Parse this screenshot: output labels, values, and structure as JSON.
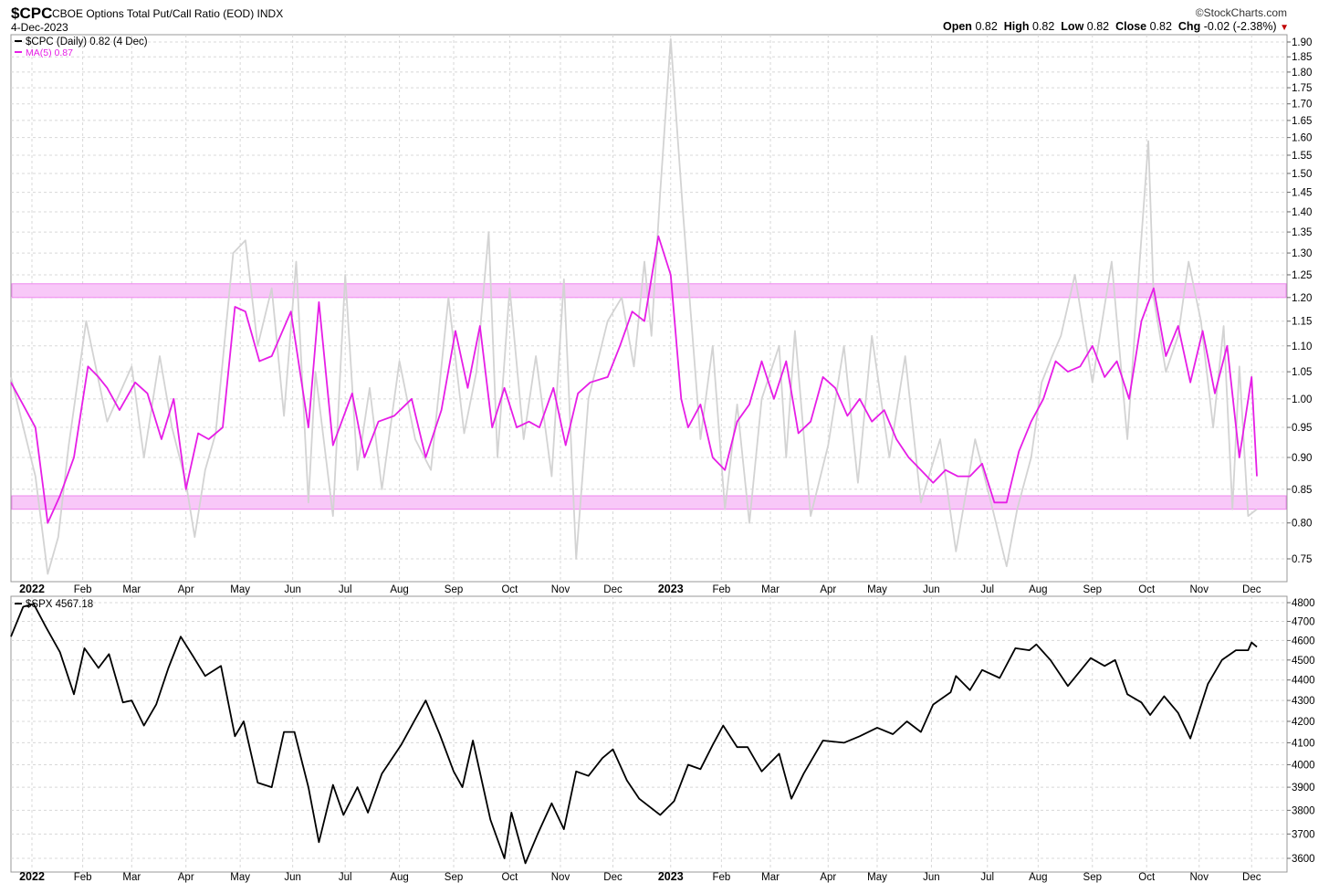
{
  "header": {
    "symbol": "$CPC",
    "name": "CBOE Options Total Put/Call Ratio (EOD)",
    "exchange": "INDX",
    "date": "4-Dec-2023",
    "brand": "©StockCharts.com",
    "open_label": "Open",
    "open": "0.82",
    "high_label": "High",
    "high": "0.82",
    "low_label": "Low",
    "low": "0.82",
    "close_label": "Close",
    "close": "0.82",
    "chg_label": "Chg",
    "chg": "-0.02 (-2.38%)",
    "chg_arrow": "▼"
  },
  "legend": {
    "cpc": "$CPC (Daily) 0.82 (4 Dec)",
    "ma": "MA(5) 0.87",
    "spx": "$SPX 4567.18"
  },
  "colors": {
    "cpc_line": "#d3d3d3",
    "ma_line": "#e61ee6",
    "band_fill": "#f8c8f8",
    "band_edge": "#ee88ee",
    "spx_line": "#000000",
    "grid": "#d8d8d8"
  },
  "chart_data": [
    {
      "type": "line",
      "x_range": [
        "2021-12-22",
        "2023-12-04"
      ],
      "y_ticks": [
        "0.75",
        "0.80",
        "0.85",
        "0.90",
        "0.95",
        "1.00",
        "1.05",
        "1.10",
        "1.15",
        "1.20",
        "1.25",
        "1.30",
        "1.35",
        "1.40",
        "1.45",
        "1.50",
        "1.55",
        "1.60",
        "1.65",
        "1.70",
        "1.75",
        "1.80",
        "1.85",
        "1.90"
      ],
      "x_ticks": [
        "2022",
        "Feb",
        "Mar",
        "Apr",
        "May",
        "Jun",
        "Jul",
        "Aug",
        "Sep",
        "Oct",
        "Nov",
        "Dec",
        "2023",
        "Feb",
        "Mar",
        "Apr",
        "May",
        "Jun",
        "Jul",
        "Aug",
        "Sep",
        "Oct",
        "Nov",
        "Dec"
      ],
      "scale": "log",
      "grid": true,
      "legend_position": "top-left",
      "bands": [
        [
          1.2,
          1.23
        ],
        [
          0.82,
          0.84
        ]
      ],
      "series": [
        {
          "name": "$CPC (Daily) 0.82 (4 Dec)",
          "x": [
            "2021-12-22",
            "2022-01-05",
            "2022-01-12",
            "2022-01-18",
            "2022-01-24",
            "2022-02-03",
            "2022-02-15",
            "2022-03-01",
            "2022-03-08",
            "2022-03-17",
            "2022-03-24",
            "2022-04-01",
            "2022-04-06",
            "2022-04-12",
            "2022-04-18",
            "2022-04-28",
            "2022-05-05",
            "2022-05-12",
            "2022-05-20",
            "2022-05-27",
            "2022-06-03",
            "2022-06-10",
            "2022-06-14",
            "2022-06-24",
            "2022-07-01",
            "2022-07-08",
            "2022-07-15",
            "2022-07-22",
            "2022-08-01",
            "2022-08-10",
            "2022-08-19",
            "2022-08-29",
            "2022-09-07",
            "2022-09-14",
            "2022-09-21",
            "2022-09-26",
            "2022-10-03",
            "2022-10-11",
            "2022-10-18",
            "2022-10-27",
            "2022-11-03",
            "2022-11-10",
            "2022-11-17",
            "2022-11-28",
            "2022-12-06",
            "2022-12-13",
            "2022-12-19",
            "2022-12-23",
            "2022-12-28",
            "2023-01-03",
            "2023-01-10",
            "2023-01-20",
            "2023-01-27",
            "2023-02-03",
            "2023-02-10",
            "2023-02-17",
            "2023-02-24",
            "2023-03-06",
            "2023-03-10",
            "2023-03-15",
            "2023-03-24",
            "2023-04-03",
            "2023-04-12",
            "2023-04-20",
            "2023-04-28",
            "2023-05-08",
            "2023-05-17",
            "2023-05-26",
            "2023-06-06",
            "2023-06-15",
            "2023-06-26",
            "2023-07-06",
            "2023-07-14",
            "2023-07-20",
            "2023-07-28",
            "2023-08-03",
            "2023-08-09",
            "2023-08-14",
            "2023-08-22",
            "2023-09-01",
            "2023-09-12",
            "2023-09-21",
            "2023-09-28",
            "2023-10-03",
            "2023-10-06",
            "2023-10-13",
            "2023-10-20",
            "2023-10-26",
            "2023-11-02",
            "2023-11-09",
            "2023-11-15",
            "2023-11-20",
            "2023-11-24",
            "2023-11-29",
            "2023-12-04"
          ],
          "values": [
            1.04,
            0.87,
            0.73,
            0.78,
            0.92,
            1.15,
            0.96,
            1.06,
            0.9,
            1.08,
            0.95,
            0.86,
            0.78,
            0.88,
            0.94,
            1.3,
            1.33,
            1.1,
            1.22,
            0.97,
            1.28,
            0.83,
            1.05,
            0.81,
            1.25,
            0.88,
            1.02,
            0.85,
            1.07,
            0.93,
            0.88,
            1.2,
            0.94,
            1.05,
            1.35,
            0.9,
            1.22,
            0.93,
            1.08,
            0.87,
            1.24,
            0.75,
            1.0,
            1.15,
            1.2,
            1.06,
            1.28,
            1.12,
            1.45,
            1.91,
            1.4,
            0.93,
            1.1,
            0.82,
            0.99,
            0.8,
            1.0,
            1.1,
            0.9,
            1.13,
            0.81,
            0.92,
            1.1,
            0.86,
            1.12,
            0.9,
            1.08,
            0.83,
            0.93,
            0.76,
            0.93,
            0.82,
            0.74,
            0.82,
            0.9,
            1.03,
            1.08,
            1.12,
            1.25,
            1.03,
            1.28,
            0.93,
            1.28,
            1.59,
            1.2,
            1.05,
            1.12,
            1.28,
            1.15,
            0.95,
            1.14,
            0.82,
            1.06,
            0.81,
            0.82
          ]
        },
        {
          "name": "MA(5) 0.87",
          "x": [
            "2021-12-22",
            "2022-01-05",
            "2022-01-12",
            "2022-01-19",
            "2022-01-27",
            "2022-02-04",
            "2022-02-10",
            "2022-02-15",
            "2022-02-22",
            "2022-03-03",
            "2022-03-10",
            "2022-03-18",
            "2022-03-25",
            "2022-04-01",
            "2022-04-08",
            "2022-04-14",
            "2022-04-22",
            "2022-04-29",
            "2022-05-05",
            "2022-05-13",
            "2022-05-20",
            "2022-05-31",
            "2022-06-10",
            "2022-06-16",
            "2022-06-24",
            "2022-07-05",
            "2022-07-12",
            "2022-07-20",
            "2022-07-29",
            "2022-08-08",
            "2022-08-16",
            "2022-08-25",
            "2022-09-02",
            "2022-09-09",
            "2022-09-16",
            "2022-09-23",
            "2022-09-30",
            "2022-10-07",
            "2022-10-14",
            "2022-10-20",
            "2022-10-28",
            "2022-11-04",
            "2022-11-11",
            "2022-11-18",
            "2022-11-28",
            "2022-12-05",
            "2022-12-12",
            "2022-12-19",
            "2022-12-27",
            "2023-01-03",
            "2023-01-09",
            "2023-01-13",
            "2023-01-20",
            "2023-01-27",
            "2023-02-03",
            "2023-02-10",
            "2023-02-17",
            "2023-02-24",
            "2023-03-03",
            "2023-03-10",
            "2023-03-17",
            "2023-03-24",
            "2023-03-31",
            "2023-04-07",
            "2023-04-14",
            "2023-04-21",
            "2023-04-28",
            "2023-05-05",
            "2023-05-12",
            "2023-05-19",
            "2023-05-26",
            "2023-06-02",
            "2023-06-09",
            "2023-06-16",
            "2023-06-23",
            "2023-06-30",
            "2023-07-07",
            "2023-07-14",
            "2023-07-21",
            "2023-07-28",
            "2023-08-04",
            "2023-08-11",
            "2023-08-18",
            "2023-08-25",
            "2023-09-01",
            "2023-09-08",
            "2023-09-15",
            "2023-09-22",
            "2023-09-29",
            "2023-10-06",
            "2023-10-13",
            "2023-10-20",
            "2023-10-27",
            "2023-11-03",
            "2023-11-10",
            "2023-11-17",
            "2023-11-24",
            "2023-12-01",
            "2023-12-04"
          ],
          "values": [
            1.03,
            0.95,
            0.8,
            0.84,
            0.9,
            1.06,
            1.04,
            1.02,
            0.98,
            1.03,
            1.01,
            0.93,
            1.0,
            0.85,
            0.94,
            0.93,
            0.95,
            1.18,
            1.17,
            1.07,
            1.08,
            1.17,
            0.95,
            1.19,
            0.92,
            1.01,
            0.9,
            0.96,
            0.97,
            1.0,
            0.9,
            0.98,
            1.13,
            1.02,
            1.14,
            0.95,
            1.02,
            0.95,
            0.96,
            0.95,
            1.02,
            0.92,
            1.01,
            1.03,
            1.04,
            1.1,
            1.17,
            1.15,
            1.34,
            1.25,
            1.0,
            0.95,
            0.99,
            0.9,
            0.88,
            0.96,
            0.99,
            1.07,
            1.0,
            1.07,
            0.94,
            0.96,
            1.04,
            1.02,
            0.97,
            1.0,
            0.96,
            0.98,
            0.93,
            0.9,
            0.88,
            0.86,
            0.88,
            0.87,
            0.87,
            0.89,
            0.83,
            0.83,
            0.91,
            0.96,
            1.0,
            1.07,
            1.05,
            1.06,
            1.1,
            1.04,
            1.07,
            1.0,
            1.15,
            1.22,
            1.08,
            1.14,
            1.03,
            1.13,
            1.01,
            1.1,
            0.9,
            1.04,
            0.87
          ]
        }
      ]
    },
    {
      "type": "line",
      "x_range": [
        "2021-12-22",
        "2023-12-04"
      ],
      "y_ticks": [
        "3600",
        "3700",
        "3800",
        "3900",
        "4000",
        "4100",
        "4200",
        "4300",
        "4400",
        "4500",
        "4600",
        "4700",
        "4800"
      ],
      "x_ticks": [
        "2022",
        "Feb",
        "Mar",
        "Apr",
        "May",
        "Jun",
        "Jul",
        "Aug",
        "Sep",
        "Oct",
        "Nov",
        "Dec",
        "2023",
        "Feb",
        "Mar",
        "Apr",
        "May",
        "Jun",
        "Jul",
        "Aug",
        "Sep",
        "Oct",
        "Nov",
        "Dec"
      ],
      "scale": "log",
      "grid": true,
      "legend_position": "top-left",
      "series": [
        {
          "name": "$SPX 4567.18",
          "x": [
            "2021-12-22",
            "2021-12-29",
            "2022-01-04",
            "2022-01-11",
            "2022-01-19",
            "2022-01-27",
            "2022-02-02",
            "2022-02-10",
            "2022-02-16",
            "2022-02-24",
            "2022-03-01",
            "2022-03-08",
            "2022-03-15",
            "2022-03-22",
            "2022-03-29",
            "2022-04-05",
            "2022-04-12",
            "2022-04-21",
            "2022-04-29",
            "2022-05-04",
            "2022-05-12",
            "2022-05-20",
            "2022-05-27",
            "2022-06-02",
            "2022-06-10",
            "2022-06-16",
            "2022-06-24",
            "2022-06-30",
            "2022-07-08",
            "2022-07-14",
            "2022-07-22",
            "2022-08-02",
            "2022-08-10",
            "2022-08-16",
            "2022-08-24",
            "2022-09-01",
            "2022-09-06",
            "2022-09-12",
            "2022-09-22",
            "2022-09-30",
            "2022-10-04",
            "2022-10-12",
            "2022-10-19",
            "2022-10-27",
            "2022-11-03",
            "2022-11-10",
            "2022-11-17",
            "2022-11-25",
            "2022-12-01",
            "2022-12-09",
            "2022-12-16",
            "2022-12-28",
            "2023-01-05",
            "2023-01-13",
            "2023-01-20",
            "2023-01-27",
            "2023-02-02",
            "2023-02-10",
            "2023-02-16",
            "2023-02-24",
            "2023-03-06",
            "2023-03-13",
            "2023-03-20",
            "2023-03-31",
            "2023-04-12",
            "2023-04-21",
            "2023-05-01",
            "2023-05-10",
            "2023-05-18",
            "2023-05-26",
            "2023-06-02",
            "2023-06-12",
            "2023-06-15",
            "2023-06-23",
            "2023-06-30",
            "2023-07-10",
            "2023-07-19",
            "2023-07-27",
            "2023-07-31",
            "2023-08-08",
            "2023-08-18",
            "2023-08-31",
            "2023-09-08",
            "2023-09-14",
            "2023-09-21",
            "2023-09-29",
            "2023-10-04",
            "2023-10-12",
            "2023-10-20",
            "2023-10-27",
            "2023-11-06",
            "2023-11-14",
            "2023-11-22",
            "2023-11-29",
            "2023-12-01",
            "2023-12-04"
          ],
          "values": [
            4620,
            4778,
            4793,
            4670,
            4540,
            4330,
            4560,
            4460,
            4530,
            4290,
            4300,
            4180,
            4280,
            4460,
            4620,
            4520,
            4420,
            4470,
            4130,
            4200,
            3920,
            3900,
            4150,
            4150,
            3900,
            3666,
            3910,
            3780,
            3900,
            3790,
            3960,
            4090,
            4210,
            4300,
            4140,
            3970,
            3900,
            4110,
            3760,
            3600,
            3790,
            3580,
            3700,
            3830,
            3720,
            3970,
            3950,
            4030,
            4070,
            3930,
            3850,
            3780,
            3840,
            4000,
            3980,
            4090,
            4180,
            4080,
            4080,
            3970,
            4050,
            3850,
            3960,
            4110,
            4100,
            4130,
            4170,
            4140,
            4200,
            4150,
            4280,
            4340,
            4420,
            4350,
            4450,
            4410,
            4560,
            4550,
            4580,
            4500,
            4370,
            4510,
            4470,
            4500,
            4330,
            4290,
            4230,
            4320,
            4240,
            4120,
            4380,
            4500,
            4550,
            4550,
            4590,
            4567
          ]
        }
      ]
    }
  ]
}
